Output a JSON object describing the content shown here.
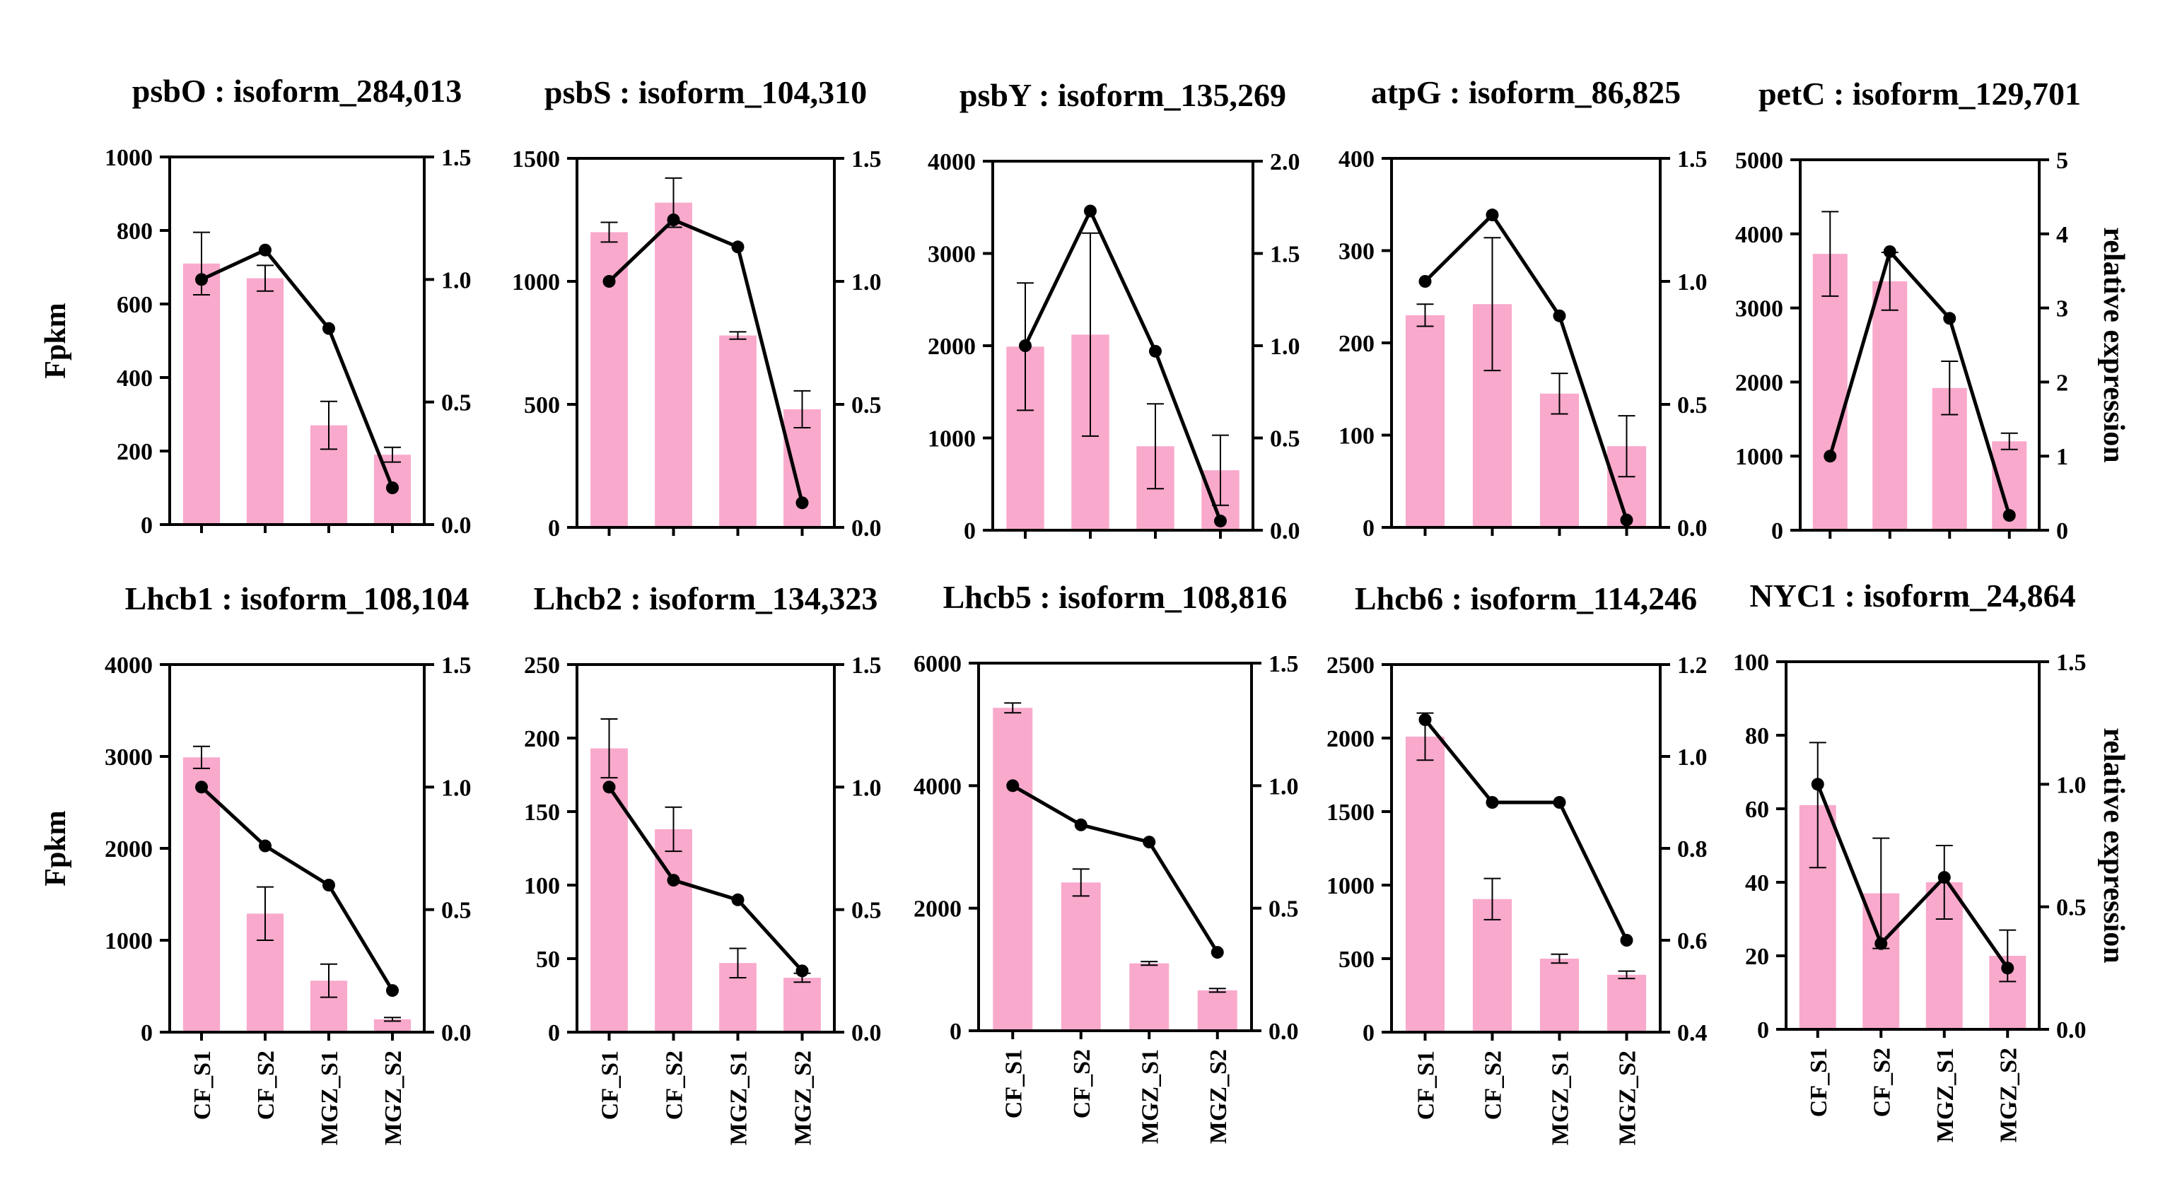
{
  "figure": {
    "left_ylabel": "Fpkm",
    "right_ylabel": "relative expression",
    "colors": {
      "bar": "#f9a9cc",
      "line": "#000000"
    }
  },
  "chart_data": [
    {
      "type": "bar+line",
      "title": "psbO : isoform_284,013",
      "categories": [
        "CF_S1",
        "CF_S2",
        "MGZ_S1",
        "MGZ_S2"
      ],
      "series": [
        {
          "name": "Fpkm",
          "axis": "left",
          "values": [
            710,
            670,
            270,
            190
          ],
          "errors": [
            85,
            35,
            65,
            20
          ]
        },
        {
          "name": "relative expression",
          "axis": "right",
          "values": [
            1.0,
            1.12,
            0.8,
            0.15
          ]
        }
      ],
      "ylim_left": [
        0,
        1000
      ],
      "yticks_left": [
        0,
        200,
        400,
        600,
        800,
        1000
      ],
      "ylim_right": [
        0,
        1.5
      ],
      "yticks_right": [
        "0.0",
        "0.5",
        "1.0",
        "1.5"
      ],
      "ylabel": "Fpkm",
      "ylabel_right": ""
    },
    {
      "type": "bar+line",
      "title": "psbS : isoform_104,310",
      "categories": [
        "CF_S1",
        "CF_S2",
        "MGZ_S1",
        "MGZ_S2"
      ],
      "series": [
        {
          "name": "Fpkm",
          "axis": "left",
          "values": [
            1200,
            1320,
            780,
            480
          ],
          "errors": [
            40,
            100,
            15,
            75
          ]
        },
        {
          "name": "relative expression",
          "axis": "right",
          "values": [
            1.0,
            1.25,
            1.14,
            0.1
          ]
        }
      ],
      "ylim_left": [
        0,
        1500
      ],
      "yticks_left": [
        0,
        500,
        1000,
        1500
      ],
      "ylim_right": [
        0,
        1.5
      ],
      "yticks_right": [
        "0.0",
        "0.5",
        "1.0",
        "1.5"
      ],
      "ylabel": "",
      "ylabel_right": ""
    },
    {
      "type": "bar+line",
      "title": "psbY : isoform_135,269",
      "categories": [
        "CF_S1",
        "CF_S2",
        "MGZ_S1",
        "MGZ_S2"
      ],
      "series": [
        {
          "name": "Fpkm",
          "axis": "left",
          "values": [
            1990,
            2120,
            910,
            650
          ],
          "errors": [
            690,
            1100,
            460,
            380
          ]
        },
        {
          "name": "relative expression",
          "axis": "right",
          "values": [
            1.0,
            1.73,
            0.97,
            0.05
          ]
        }
      ],
      "ylim_left": [
        0,
        4000
      ],
      "yticks_left": [
        0,
        1000,
        2000,
        3000,
        4000
      ],
      "ylim_right": [
        0,
        2.0
      ],
      "yticks_right": [
        "0.0",
        "0.5",
        "1.0",
        "1.5",
        "2.0"
      ],
      "ylabel": "",
      "ylabel_right": ""
    },
    {
      "type": "bar+line",
      "title": "atpG : isoform_86,825",
      "categories": [
        "CF_S1",
        "CF_S2",
        "MGZ_S1",
        "MGZ_S2"
      ],
      "series": [
        {
          "name": "Fpkm",
          "axis": "left",
          "values": [
            230,
            242,
            145,
            88
          ],
          "errors": [
            12,
            72,
            22,
            33
          ]
        },
        {
          "name": "relative expression",
          "axis": "right",
          "values": [
            1.0,
            1.27,
            0.86,
            0.03
          ]
        }
      ],
      "ylim_left": [
        0,
        400
      ],
      "yticks_left": [
        0,
        100,
        200,
        300,
        400
      ],
      "ylim_right": [
        0,
        1.5
      ],
      "yticks_right": [
        "0.0",
        "0.5",
        "1.0",
        "1.5"
      ],
      "ylabel": "",
      "ylabel_right": ""
    },
    {
      "type": "bar+line",
      "title": "petC : isoform_129,701",
      "categories": [
        "CF_S1",
        "CF_S2",
        "MGZ_S1",
        "MGZ_S2"
      ],
      "series": [
        {
          "name": "Fpkm",
          "axis": "left",
          "values": [
            3730,
            3360,
            1920,
            1200
          ],
          "errors": [
            570,
            390,
            360,
            110
          ]
        },
        {
          "name": "relative expression",
          "axis": "right",
          "values": [
            1.0,
            3.76,
            2.86,
            0.2
          ]
        }
      ],
      "ylim_left": [
        0,
        5000
      ],
      "yticks_left": [
        0,
        1000,
        2000,
        3000,
        4000,
        5000
      ],
      "ylim_right": [
        0,
        5
      ],
      "yticks_right": [
        "0",
        "1",
        "2",
        "3",
        "4",
        "5"
      ],
      "ylabel": "",
      "ylabel_right": "relative expression"
    },
    {
      "type": "bar+line",
      "title": "Lhcb1 : isoform_108,104",
      "categories": [
        "CF_S1",
        "CF_S2",
        "MGZ_S1",
        "MGZ_S2"
      ],
      "series": [
        {
          "name": "Fpkm",
          "axis": "left",
          "values": [
            2990,
            1290,
            560,
            140
          ],
          "errors": [
            120,
            290,
            180,
            20
          ]
        },
        {
          "name": "relative expression",
          "axis": "right",
          "values": [
            1.0,
            0.76,
            0.6,
            0.17
          ]
        }
      ],
      "ylim_left": [
        0,
        4000
      ],
      "yticks_left": [
        0,
        1000,
        2000,
        3000,
        4000
      ],
      "ylim_right": [
        0,
        1.5
      ],
      "yticks_right": [
        "0.0",
        "0.5",
        "1.0",
        "1.5"
      ],
      "ylabel": "Fpkm",
      "ylabel_right": ""
    },
    {
      "type": "bar+line",
      "title": "Lhcb2 : isoform_134,323",
      "categories": [
        "CF_S1",
        "CF_S2",
        "MGZ_S1",
        "MGZ_S2"
      ],
      "series": [
        {
          "name": "Fpkm",
          "axis": "left",
          "values": [
            193,
            138,
            47,
            37
          ],
          "errors": [
            20,
            15,
            10,
            3
          ]
        },
        {
          "name": "relative expression",
          "axis": "right",
          "values": [
            1.0,
            0.62,
            0.54,
            0.25
          ]
        }
      ],
      "ylim_left": [
        0,
        250
      ],
      "yticks_left": [
        0,
        50,
        100,
        150,
        200,
        250
      ],
      "ylim_right": [
        0,
        1.5
      ],
      "yticks_right": [
        "0.0",
        "0.5",
        "1.0",
        "1.5"
      ],
      "ylabel": "",
      "ylabel_right": ""
    },
    {
      "type": "bar+line",
      "title": "Lhcb5 : isoform_108,816",
      "categories": [
        "CF_S1",
        "CF_S2",
        "MGZ_S1",
        "MGZ_S2"
      ],
      "series": [
        {
          "name": "Fpkm",
          "axis": "left",
          "values": [
            5270,
            2420,
            1100,
            660
          ],
          "errors": [
            80,
            220,
            30,
            30
          ]
        },
        {
          "name": "relative expression",
          "axis": "right",
          "values": [
            1.0,
            0.84,
            0.77,
            0.32
          ]
        }
      ],
      "ylim_left": [
        0,
        6000
      ],
      "yticks_left": [
        0,
        2000,
        4000,
        6000
      ],
      "ylim_right": [
        0,
        1.5
      ],
      "yticks_right": [
        "0.0",
        "0.5",
        "1.0",
        "1.5"
      ],
      "ylabel": "",
      "ylabel_right": ""
    },
    {
      "type": "bar+line",
      "title": "Lhcb6 : isoform_114,246",
      "categories": [
        "CF_S1",
        "CF_S2",
        "MGZ_S1",
        "MGZ_S2"
      ],
      "series": [
        {
          "name": "Fpkm",
          "axis": "left",
          "values": [
            2010,
            905,
            500,
            390
          ],
          "errors": [
            160,
            140,
            30,
            25
          ]
        },
        {
          "name": "relative expression",
          "axis": "right",
          "values": [
            1.08,
            0.9,
            0.9,
            0.6
          ]
        }
      ],
      "ylim_left": [
        0,
        2500
      ],
      "yticks_left": [
        0,
        500,
        1000,
        1500,
        2000,
        2500
      ],
      "ylim_right": [
        0.4,
        1.2
      ],
      "yticks_right": [
        "0.4",
        "0.6",
        "0.8",
        "1.0",
        "1.2"
      ],
      "ylabel": "",
      "ylabel_right": ""
    },
    {
      "type": "bar+line",
      "title": "NYC1 : isoform_24,864",
      "categories": [
        "CF_S1",
        "CF_S2",
        "MGZ_S1",
        "MGZ_S2"
      ],
      "series": [
        {
          "name": "Fpkm",
          "axis": "left",
          "values": [
            61,
            37,
            40,
            20
          ],
          "errors": [
            17,
            15,
            10,
            7
          ]
        },
        {
          "name": "relative expression",
          "axis": "right",
          "values": [
            1.0,
            0.35,
            0.62,
            0.25
          ]
        }
      ],
      "ylim_left": [
        0,
        100
      ],
      "yticks_left": [
        0,
        20,
        40,
        60,
        80,
        100
      ],
      "ylim_right": [
        0,
        1.5
      ],
      "yticks_right": [
        "0.0",
        "0.5",
        "1.0",
        "1.5"
      ],
      "ylabel": "",
      "ylabel_right": "relative expression"
    }
  ]
}
